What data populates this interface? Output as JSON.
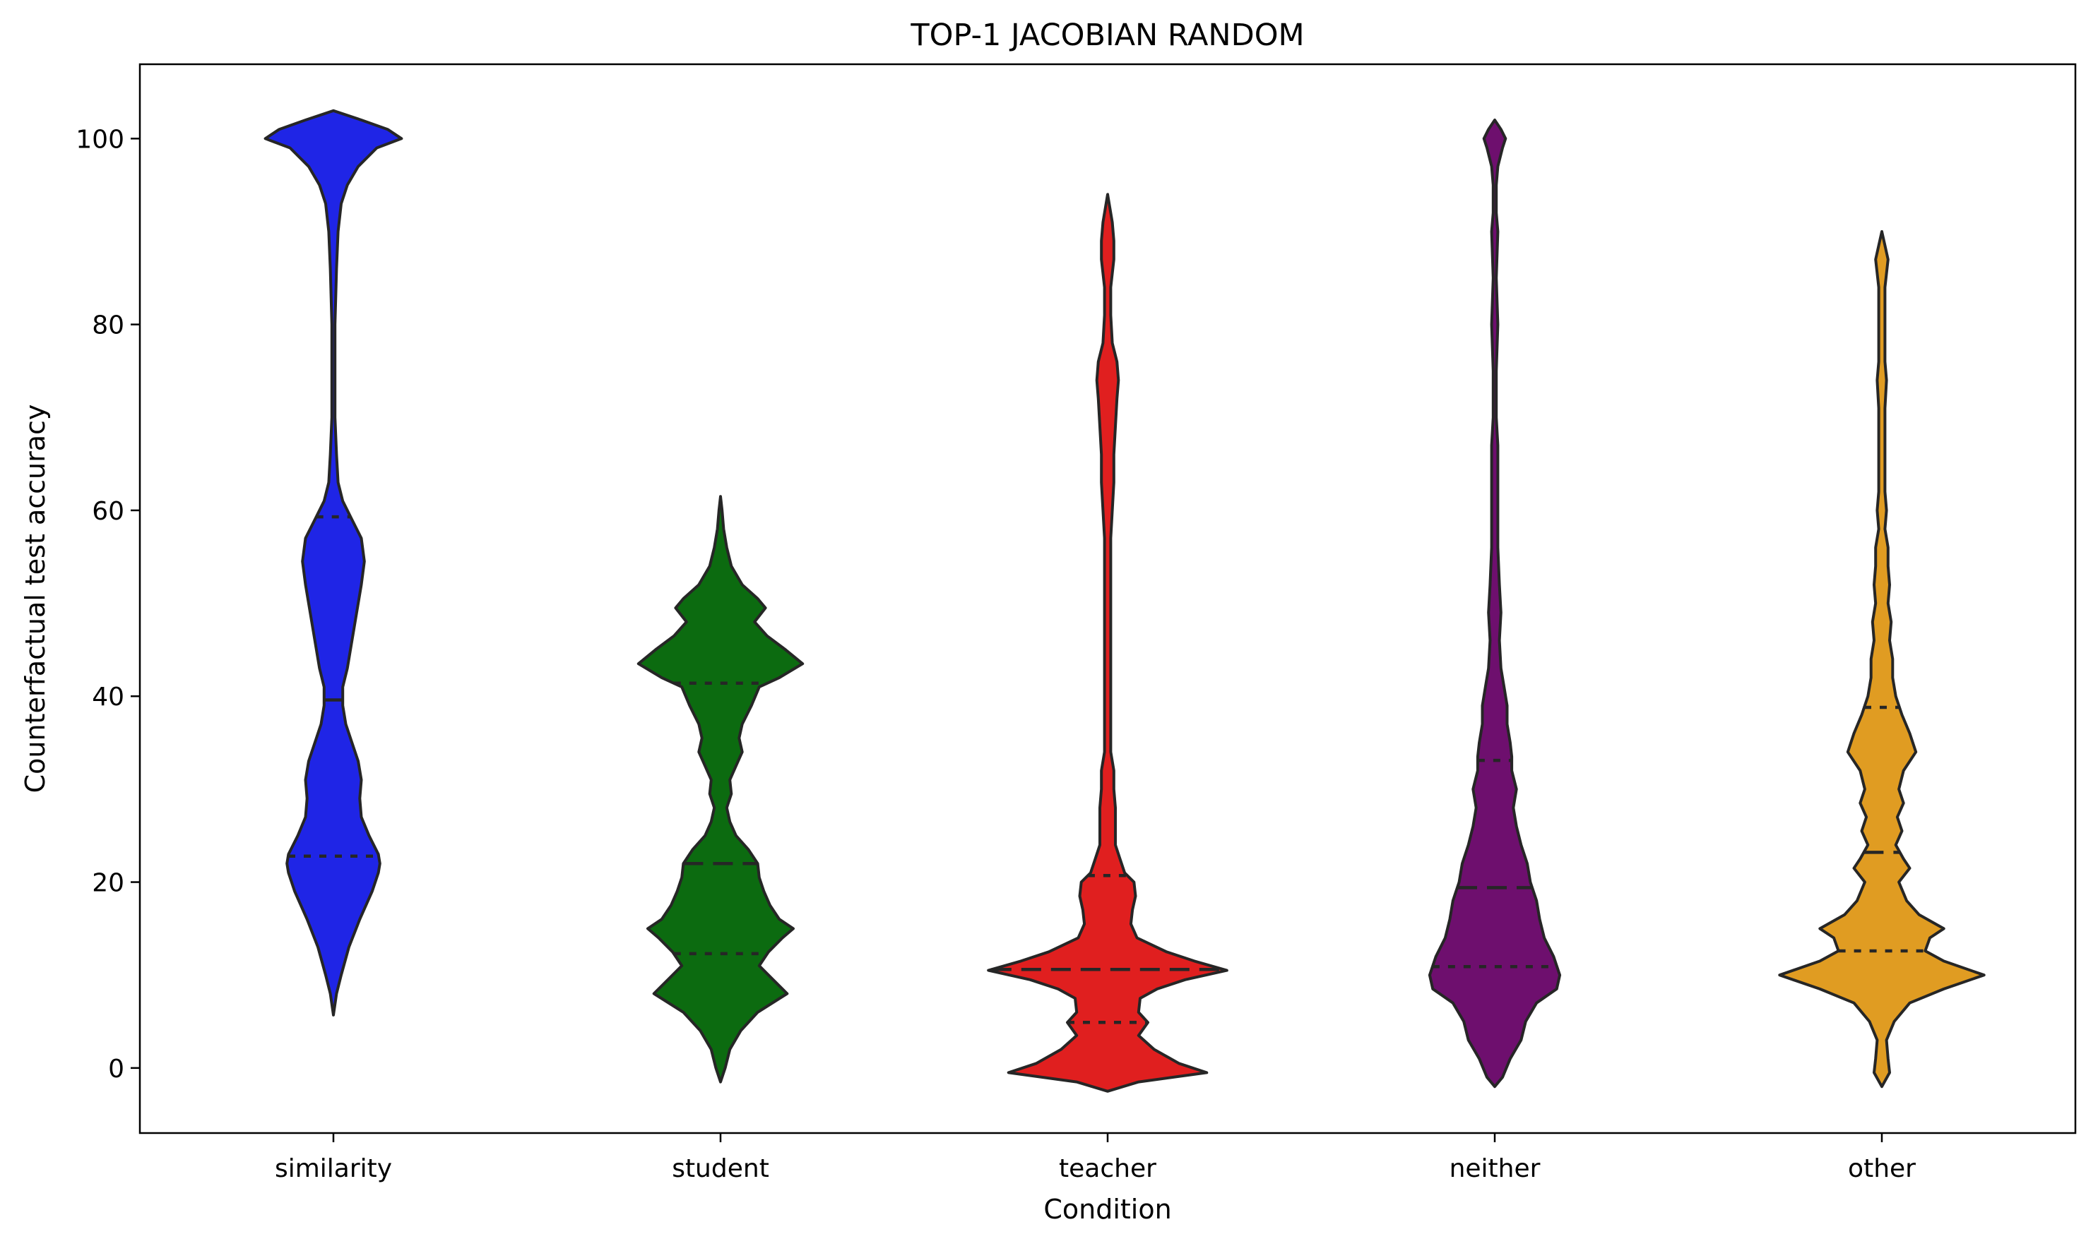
{
  "chart_data": {
    "type": "violin",
    "title": "TOP-1 JACOBIAN RANDOM",
    "xlabel": "Condition",
    "ylabel": "Counterfactual test accuracy",
    "ylim": [
      -7,
      108
    ],
    "yticks": [
      0,
      20,
      40,
      60,
      80,
      100
    ],
    "categories": [
      "similarity",
      "student",
      "teacher",
      "neither",
      "other"
    ],
    "grid": false,
    "legend": "none",
    "inner": "quartile",
    "colors": [
      "#1f25e6",
      "#0c6b10",
      "#e01f1f",
      "#6e0f6e",
      "#e09c22"
    ],
    "series": [
      {
        "category": "similarity",
        "min": 5.7,
        "max": 103,
        "quartiles": [
          22.8,
          39.6,
          59.3
        ],
        "density": [
          [
            5.7,
            0.0
          ],
          [
            8,
            0.02
          ],
          [
            10,
            0.05
          ],
          [
            13,
            0.1
          ],
          [
            16,
            0.17
          ],
          [
            19,
            0.25
          ],
          [
            21,
            0.29
          ],
          [
            22,
            0.3
          ],
          [
            23,
            0.29
          ],
          [
            25,
            0.23
          ],
          [
            27,
            0.18
          ],
          [
            29,
            0.17
          ],
          [
            31,
            0.18
          ],
          [
            33,
            0.16
          ],
          [
            35,
            0.12
          ],
          [
            37,
            0.08
          ],
          [
            39,
            0.06
          ],
          [
            41,
            0.06
          ],
          [
            43,
            0.09
          ],
          [
            46,
            0.12
          ],
          [
            49,
            0.15
          ],
          [
            52,
            0.18
          ],
          [
            54.5,
            0.2
          ],
          [
            57,
            0.18
          ],
          [
            59,
            0.12
          ],
          [
            61,
            0.06
          ],
          [
            63,
            0.03
          ],
          [
            66,
            0.02
          ],
          [
            70,
            0.01
          ],
          [
            75,
            0.01
          ],
          [
            80,
            0.01
          ],
          [
            86,
            0.02
          ],
          [
            90,
            0.03
          ],
          [
            93,
            0.05
          ],
          [
            95,
            0.09
          ],
          [
            97,
            0.16
          ],
          [
            99,
            0.28
          ],
          [
            100,
            0.44
          ],
          [
            101,
            0.35
          ],
          [
            102,
            0.18
          ],
          [
            103,
            0.0
          ]
        ]
      },
      {
        "category": "student",
        "min": -1.5,
        "max": 61.5,
        "quartiles": [
          12.3,
          22.0,
          41.4
        ],
        "density": [
          [
            -1.5,
            0.0
          ],
          [
            0,
            0.03
          ],
          [
            2,
            0.06
          ],
          [
            4,
            0.13
          ],
          [
            6,
            0.24
          ],
          [
            8,
            0.43
          ],
          [
            9.5,
            0.34
          ],
          [
            11,
            0.25
          ],
          [
            12.5,
            0.31
          ],
          [
            14,
            0.4
          ],
          [
            15,
            0.47
          ],
          [
            16,
            0.38
          ],
          [
            17.5,
            0.32
          ],
          [
            19,
            0.28
          ],
          [
            20.5,
            0.25
          ],
          [
            22,
            0.24
          ],
          [
            23.5,
            0.18
          ],
          [
            25,
            0.1
          ],
          [
            26.5,
            0.06
          ],
          [
            28,
            0.04
          ],
          [
            29.5,
            0.07
          ],
          [
            31,
            0.06
          ],
          [
            32.5,
            0.1
          ],
          [
            34,
            0.14
          ],
          [
            35.5,
            0.12
          ],
          [
            37,
            0.14
          ],
          [
            39,
            0.2
          ],
          [
            41,
            0.25
          ],
          [
            42,
            0.38
          ],
          [
            43.5,
            0.53
          ],
          [
            45,
            0.42
          ],
          [
            46.5,
            0.3
          ],
          [
            48,
            0.22
          ],
          [
            49.5,
            0.29
          ],
          [
            50.5,
            0.24
          ],
          [
            52,
            0.14
          ],
          [
            54,
            0.07
          ],
          [
            56,
            0.04
          ],
          [
            58,
            0.02
          ],
          [
            60,
            0.01
          ],
          [
            61.5,
            0.0
          ]
        ]
      },
      {
        "category": "teacher",
        "min": -2.5,
        "max": 94,
        "quartiles": [
          4.9,
          10.6,
          20.7
        ],
        "density": [
          [
            -2.5,
            0.0
          ],
          [
            -1.5,
            0.2
          ],
          [
            -0.5,
            0.64
          ],
          [
            0.5,
            0.46
          ],
          [
            2,
            0.3
          ],
          [
            3.5,
            0.2
          ],
          [
            4.9,
            0.26
          ],
          [
            6,
            0.2
          ],
          [
            7.5,
            0.21
          ],
          [
            8.5,
            0.32
          ],
          [
            9.5,
            0.5
          ],
          [
            10.5,
            0.77
          ],
          [
            11.5,
            0.56
          ],
          [
            12.5,
            0.38
          ],
          [
            14,
            0.19
          ],
          [
            15.5,
            0.15
          ],
          [
            17,
            0.16
          ],
          [
            18.5,
            0.18
          ],
          [
            20,
            0.17
          ],
          [
            21,
            0.11
          ],
          [
            22.5,
            0.08
          ],
          [
            24,
            0.05
          ],
          [
            26,
            0.05
          ],
          [
            28,
            0.05
          ],
          [
            30,
            0.04
          ],
          [
            32,
            0.04
          ],
          [
            34,
            0.02
          ],
          [
            38,
            0.02
          ],
          [
            44,
            0.02
          ],
          [
            50,
            0.02
          ],
          [
            54,
            0.02
          ],
          [
            57,
            0.02
          ],
          [
            60,
            0.03
          ],
          [
            63,
            0.04
          ],
          [
            66,
            0.04
          ],
          [
            69,
            0.05
          ],
          [
            72,
            0.06
          ],
          [
            74,
            0.07
          ],
          [
            76,
            0.06
          ],
          [
            78,
            0.03
          ],
          [
            81,
            0.02
          ],
          [
            84,
            0.02
          ],
          [
            87,
            0.04
          ],
          [
            89,
            0.04
          ],
          [
            91,
            0.03
          ],
          [
            94,
            0.0
          ]
        ]
      },
      {
        "category": "neither",
        "min": -2,
        "max": 102,
        "quartiles": [
          10.9,
          19.4,
          33.1
        ],
        "density": [
          [
            -2,
            0.0
          ],
          [
            -1,
            0.05
          ],
          [
            1,
            0.1
          ],
          [
            3,
            0.17
          ],
          [
            5,
            0.2
          ],
          [
            7,
            0.27
          ],
          [
            8.5,
            0.4
          ],
          [
            10,
            0.42
          ],
          [
            12,
            0.38
          ],
          [
            14,
            0.32
          ],
          [
            16,
            0.29
          ],
          [
            18,
            0.27
          ],
          [
            20,
            0.23
          ],
          [
            22,
            0.21
          ],
          [
            24,
            0.17
          ],
          [
            26,
            0.14
          ],
          [
            28,
            0.12
          ],
          [
            30,
            0.14
          ],
          [
            32,
            0.11
          ],
          [
            33.5,
            0.11
          ],
          [
            35,
            0.1
          ],
          [
            37,
            0.08
          ],
          [
            39,
            0.08
          ],
          [
            41,
            0.06
          ],
          [
            43,
            0.04
          ],
          [
            46,
            0.03
          ],
          [
            49,
            0.04
          ],
          [
            52,
            0.03
          ],
          [
            56,
            0.02
          ],
          [
            60,
            0.02
          ],
          [
            64,
            0.02
          ],
          [
            67,
            0.02
          ],
          [
            70,
            0.01
          ],
          [
            75,
            0.01
          ],
          [
            80,
            0.02
          ],
          [
            85,
            0.01
          ],
          [
            90,
            0.02
          ],
          [
            92,
            0.01
          ],
          [
            95,
            0.01
          ],
          [
            97,
            0.02
          ],
          [
            99,
            0.05
          ],
          [
            100,
            0.07
          ],
          [
            101,
            0.04
          ],
          [
            102,
            0.0
          ]
        ]
      },
      {
        "category": "other",
        "min": -2,
        "max": 90,
        "quartiles": [
          12.6,
          23.2,
          38.8
        ],
        "density": [
          [
            -2,
            0.0
          ],
          [
            -0.5,
            0.05
          ],
          [
            1,
            0.04
          ],
          [
            3,
            0.03
          ],
          [
            5,
            0.08
          ],
          [
            7,
            0.18
          ],
          [
            8.5,
            0.4
          ],
          [
            10,
            0.66
          ],
          [
            11.5,
            0.4
          ],
          [
            12.6,
            0.28
          ],
          [
            14,
            0.31
          ],
          [
            15,
            0.4
          ],
          [
            16.5,
            0.24
          ],
          [
            18,
            0.16
          ],
          [
            20,
            0.11
          ],
          [
            21.5,
            0.18
          ],
          [
            22.5,
            0.14
          ],
          [
            24,
            0.09
          ],
          [
            25.5,
            0.13
          ],
          [
            27,
            0.1
          ],
          [
            28.5,
            0.14
          ],
          [
            30,
            0.11
          ],
          [
            32,
            0.14
          ],
          [
            34,
            0.22
          ],
          [
            36,
            0.18
          ],
          [
            38,
            0.13
          ],
          [
            40,
            0.09
          ],
          [
            42,
            0.07
          ],
          [
            44,
            0.07
          ],
          [
            46,
            0.05
          ],
          [
            48,
            0.06
          ],
          [
            50,
            0.04
          ],
          [
            52,
            0.05
          ],
          [
            54,
            0.04
          ],
          [
            56,
            0.04
          ],
          [
            58,
            0.02
          ],
          [
            60,
            0.03
          ],
          [
            62,
            0.02
          ],
          [
            65,
            0.02
          ],
          [
            68,
            0.02
          ],
          [
            71,
            0.02
          ],
          [
            74,
            0.03
          ],
          [
            76,
            0.02
          ],
          [
            78,
            0.02
          ],
          [
            81,
            0.02
          ],
          [
            84,
            0.02
          ],
          [
            87,
            0.04
          ],
          [
            88.5,
            0.02
          ],
          [
            90,
            0.0
          ]
        ]
      }
    ]
  }
}
